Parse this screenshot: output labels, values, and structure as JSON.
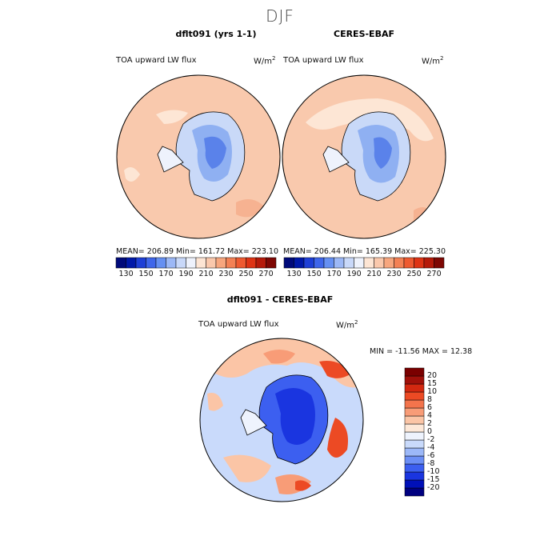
{
  "season": "DJF",
  "panels": [
    {
      "title": "dflt091 (yrs 1-1)",
      "variable": "TOA upward LW flux",
      "units_base": "W/m",
      "units_exp": "2",
      "stats": "MEAN= 206.89   Min= 161.72   Max= 223.10"
    },
    {
      "title": "CERES-EBAF",
      "variable": "TOA upward LW flux",
      "units_base": "W/m",
      "units_exp": "2",
      "stats": "MEAN= 206.44   Min= 165.39   Max= 225.30"
    }
  ],
  "colorbar_top": {
    "colors": [
      "#000a7a",
      "#0018a8",
      "#1e3fd6",
      "#3f66ea",
      "#6690f2",
      "#9cb8f6",
      "#c8d8f9",
      "#eef2fc",
      "#fde5d4",
      "#fac8ac",
      "#f7a67e",
      "#f38155",
      "#ee5a31",
      "#de3415",
      "#b51a0a",
      "#7e0703"
    ],
    "tick_labels": [
      "130",
      "150",
      "170",
      "190",
      "210",
      "230",
      "250",
      "270"
    ]
  },
  "diff_panel": {
    "title": "dflt091 - CERES-EBAF",
    "variable": "TOA upward LW flux",
    "units_base": "W/m",
    "units_exp": "2",
    "stats": "MIN = -11.56 MAX =  12.38"
  },
  "colorbar_diff": {
    "colors": [
      "#000080",
      "#0010b8",
      "#1a35e0",
      "#3c5ff0",
      "#6c8ff5",
      "#9cb8f8",
      "#c9dafb",
      "#eef3fd",
      "#fde8d8",
      "#fbc5a6",
      "#f89c77",
      "#f3744c",
      "#ec4a24",
      "#d32810",
      "#a0100a",
      "#7a0000"
    ],
    "labels": [
      "20",
      "15",
      "10",
      "8",
      "6",
      "4",
      "2",
      "0",
      "-2",
      "-4",
      "-6",
      "-8",
      "-10",
      "-15",
      "-20"
    ]
  }
}
